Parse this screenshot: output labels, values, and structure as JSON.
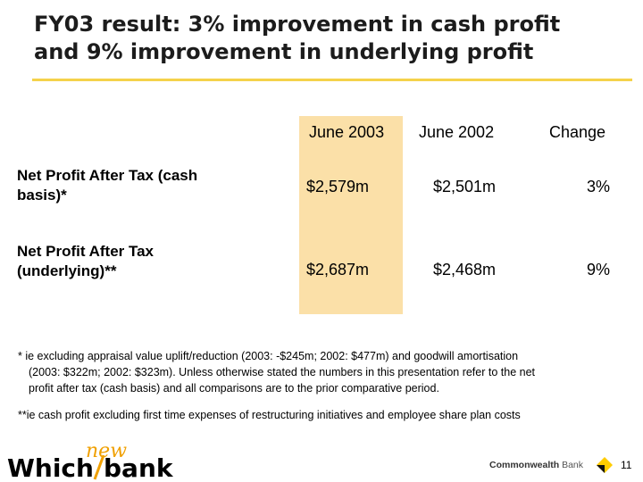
{
  "title": {
    "line1": "FY03 result: 3% improvement in cash profit",
    "line2": "and 9% improvement in underlying profit"
  },
  "table": {
    "columns": [
      "June 2003",
      "June 2002",
      "Change"
    ],
    "rows": [
      {
        "label_line1": "Net Profit After Tax (cash",
        "label_line2": "basis)*",
        "values": [
          "$2,579m",
          "$2,501m",
          "3%"
        ]
      },
      {
        "label_line1": "Net Profit After Tax",
        "label_line2": "(underlying)**",
        "values": [
          "$2,687m",
          "$2,468m",
          "9%"
        ]
      }
    ],
    "highlight_color": "#fbe0a8"
  },
  "notes": {
    "note1_line1": "* ie excluding appraisal value uplift/reduction (2003: -$245m; 2002: $477m) and goodwill amortisation",
    "note1_line2": "(2003: $322m; 2002: $323m). Unless otherwise stated the numbers in this presentation refer to the net",
    "note1_line3": "profit after tax (cash basis) and all comparisons are to the prior comparative period.",
    "note2": "**ie cash profit excluding first time expenses of restructuring initiatives and employee share plan costs"
  },
  "footer": {
    "logo_which": "Which",
    "logo_new": "new",
    "logo_bank": "bank",
    "brand": "Commonwealth",
    "brand_suffix": "Bank",
    "page_number": "11"
  },
  "colors": {
    "accent_rule": "#f5d24b",
    "logo_orange": "#f0a000",
    "brand_yellow": "#ffcc00"
  }
}
